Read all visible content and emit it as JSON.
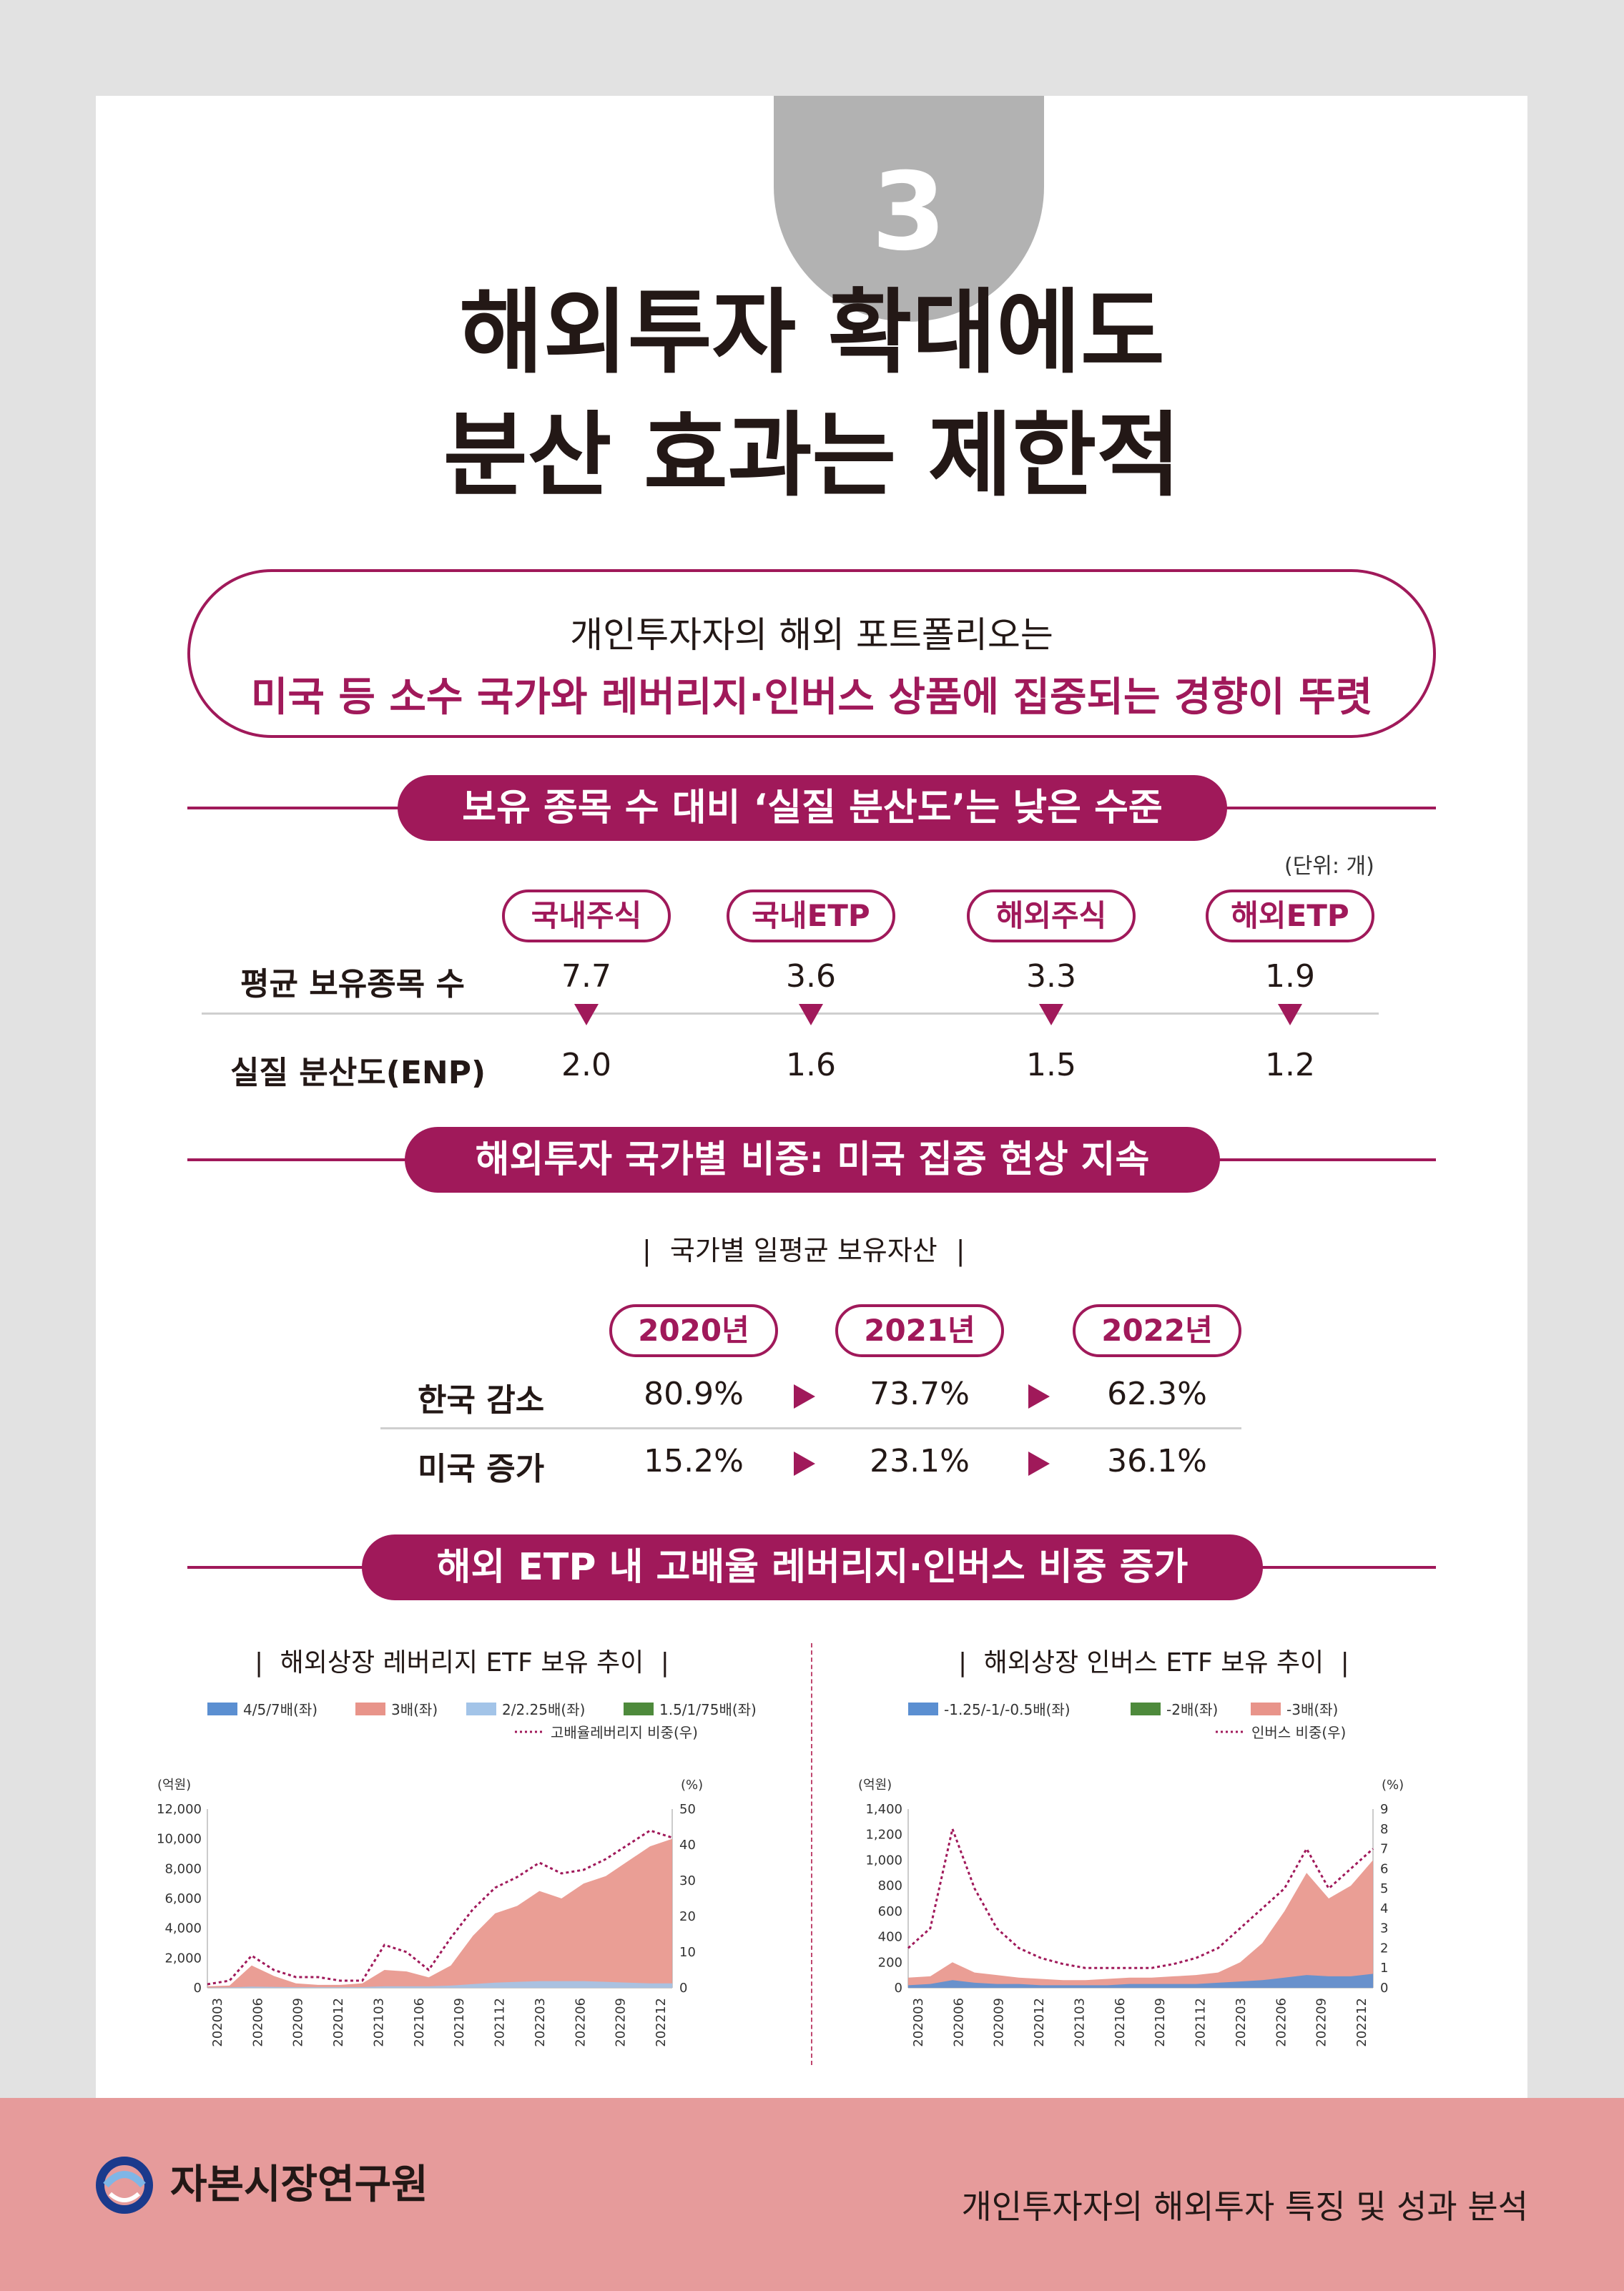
{
  "badge_number": "3",
  "title_line1": "해외투자 확대에도",
  "title_line2": "분산 효과는 제한적",
  "summary": {
    "line1": "개인투자자의 해외 포트폴리오는",
    "line2": "미국 등 소수 국가와 레버리지·인버스 상품에 집중되는 경향이 뚜렷"
  },
  "section1": {
    "heading": "보유 종목 수 대비 ‘실질 분산도’는 낮은 수준",
    "unit": "(단위: 개)",
    "categories": [
      "국내주식",
      "국내ETP",
      "해외주식",
      "해외ETP"
    ],
    "row1_label": "평균 보유종목 수",
    "row1_values": [
      "7.7",
      "3.6",
      "3.3",
      "1.9"
    ],
    "row2_label": "실질 분산도(ENP)",
    "row2_values": [
      "2.0",
      "1.6",
      "1.5",
      "1.2"
    ]
  },
  "section2": {
    "heading": "해외투자 국가별 비중: 미국 집중 현상 지속",
    "caption": "국가별 일평균 보유자산",
    "years": [
      "2020년",
      "2021년",
      "2022년"
    ],
    "row1_label": "한국 감소",
    "row1_values": [
      "80.9%",
      "73.7%",
      "62.3%"
    ],
    "row2_label": "미국 증가",
    "row2_values": [
      "15.2%",
      "23.1%",
      "36.1%"
    ]
  },
  "section3": {
    "heading": "해외 ETP 내 고배율 레버리지·인버스 비중 증가"
  },
  "chart_data": [
    {
      "type": "area",
      "title": "해외상장 레버리지 ETF 보유 추이",
      "left_unit": "(억원)",
      "right_unit": "(%)",
      "ylim": [
        0,
        12000
      ],
      "y2lim": [
        0,
        50
      ],
      "y_ticks": [
        "0",
        "2,000",
        "4,000",
        "6,000",
        "8,000",
        "10,000",
        "12,000"
      ],
      "y2_ticks": [
        "0",
        "10",
        "20",
        "30",
        "40",
        "50"
      ],
      "x_ticks": [
        "202003",
        "202006",
        "202009",
        "202012",
        "202103",
        "202106",
        "202109",
        "202112",
        "202203",
        "202206",
        "202209",
        "202212"
      ],
      "legend": [
        "4/5/7배(좌)",
        "3배(좌)",
        "2/2.25배(좌)",
        "1.5/1/75배(좌)",
        "고배율레버리지 비중(우)"
      ],
      "colors": [
        "#5b8fd1",
        "#e8948a",
        "#a3c4e8",
        "#4e8a3c",
        "#a0195a"
      ],
      "series": [
        {
          "name": "3배(좌)",
          "values": [
            100,
            150,
            1500,
            800,
            300,
            200,
            200,
            300,
            1200,
            1100,
            700,
            1500,
            3500,
            5000,
            5500,
            6500,
            6000,
            7000,
            7500,
            8500,
            9500,
            10000
          ]
        },
        {
          "name": "2/2.25배(좌)",
          "values": [
            20,
            30,
            80,
            60,
            40,
            40,
            40,
            50,
            100,
            100,
            100,
            150,
            250,
            350,
            400,
            450,
            450,
            450,
            400,
            350,
            300,
            300
          ]
        },
        {
          "name": "고배율레버리지 비중(우)",
          "values": [
            1,
            2,
            9,
            5,
            3,
            3,
            2,
            2,
            12,
            10,
            5,
            14,
            22,
            28,
            31,
            35,
            32,
            33,
            36,
            40,
            44,
            42
          ]
        }
      ]
    },
    {
      "type": "area",
      "title": "해외상장 인버스 ETF 보유 추이",
      "left_unit": "(억원)",
      "right_unit": "(%)",
      "ylim": [
        0,
        1400
      ],
      "y2lim": [
        0,
        9
      ],
      "y_ticks": [
        "0",
        "200",
        "400",
        "600",
        "800",
        "1,000",
        "1,200",
        "1,400"
      ],
      "y2_ticks": [
        "0",
        "1",
        "2",
        "3",
        "4",
        "5",
        "6",
        "7",
        "8",
        "9"
      ],
      "x_ticks": [
        "202003",
        "202006",
        "202009",
        "202012",
        "202103",
        "202106",
        "202109",
        "202112",
        "202203",
        "202206",
        "202209",
        "202212"
      ],
      "legend": [
        "-1.25/-1/-0.5배(좌)",
        "-2배(좌)",
        "-3배(좌)",
        "인버스 비중(우)"
      ],
      "colors": [
        "#5b8fd1",
        "#4e8a3c",
        "#e8948a",
        "#a0195a"
      ],
      "series": [
        {
          "name": "-3배(좌)",
          "values": [
            80,
            90,
            200,
            120,
            100,
            80,
            70,
            60,
            60,
            70,
            80,
            80,
            90,
            100,
            120,
            200,
            350,
            600,
            900,
            700,
            800,
            1000
          ]
        },
        {
          "name": "-1.25/-1/-0.5배(좌)",
          "values": [
            20,
            30,
            60,
            40,
            30,
            30,
            20,
            20,
            20,
            20,
            30,
            30,
            30,
            30,
            40,
            50,
            60,
            80,
            100,
            90,
            90,
            110
          ]
        },
        {
          "name": "인버스 비중(우)",
          "values": [
            2,
            3,
            8,
            5,
            3,
            2,
            1.5,
            1.2,
            1,
            1,
            1,
            1,
            1.2,
            1.5,
            2,
            3,
            4,
            5,
            7,
            5,
            6,
            7
          ]
        }
      ]
    }
  ],
  "footer": {
    "logo_text": "자본시장연구원",
    "right_text": "개인투자자의 해외투자 특징 및 성과 분석"
  }
}
